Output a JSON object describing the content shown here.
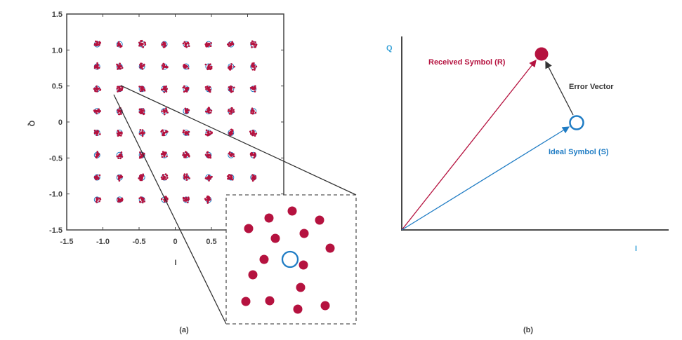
{
  "colors": {
    "received": "#b5123f",
    "ideal": "#1f7cc4",
    "axis": "#333333",
    "error": "#333333",
    "axis_label_b": "#3aa3d8"
  },
  "chart_data": [
    {
      "type": "scatter",
      "panel_label": "(a)",
      "xlabel": "I",
      "ylabel": "Q",
      "xlim": [
        -1.5,
        1.5
      ],
      "ylim": [
        -1.5,
        1.5
      ],
      "xticks": [
        "-1.5",
        "-1.0",
        "-0.5",
        "0",
        "0.5",
        "1.0",
        "1.5"
      ],
      "yticks": [
        "1.5",
        "1.0",
        "0.5",
        "0",
        "-0.5",
        "-1.0",
        "-1.5"
      ],
      "grid": false,
      "constellation_levels": [
        -1.08,
        -0.77,
        -0.46,
        -0.15,
        0.15,
        0.46,
        0.77,
        1.08
      ],
      "series": [
        {
          "marker": "received-dots",
          "color": "#b5123f"
        },
        {
          "marker": "ideal-circles",
          "color": "#1f7cc4"
        }
      ],
      "inset": {
        "zoomed_point": [
          -0.77,
          0.46
        ],
        "received_count": 15,
        "ideal_count": 1
      }
    },
    {
      "type": "diagram",
      "panel_label": "(b)",
      "xlabel": "I",
      "ylabel": "Q",
      "labels": {
        "received": "Received Symbol (R)",
        "error": "Error Vector",
        "ideal": "Ideal Symbol (S)"
      }
    }
  ]
}
